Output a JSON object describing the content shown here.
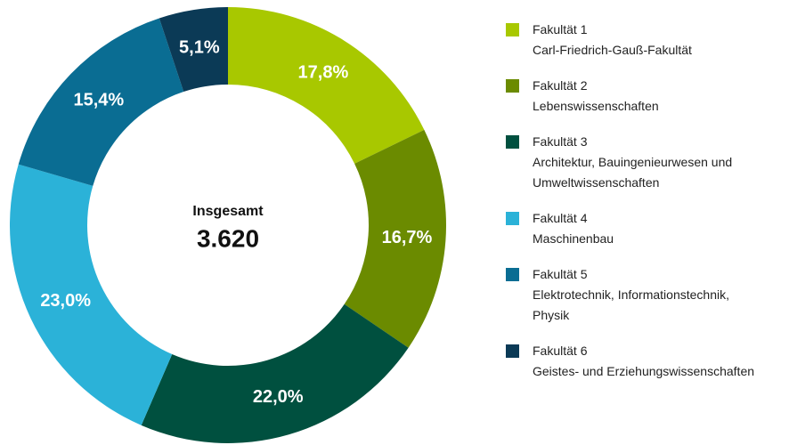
{
  "chart_data": {
    "type": "donut",
    "center_title": "Insgesamt",
    "center_value": "3.620",
    "categories": [
      "Fakultät 1",
      "Fakultät 2",
      "Fakultät 3",
      "Fakultät 4",
      "Fakultät 5",
      "Fakultät 6"
    ],
    "descriptions": [
      [
        "Carl-Friedrich-Gauß-Fakultät"
      ],
      [
        "Lebenswissenschaften"
      ],
      [
        "Architektur, Bauingenieurwesen und",
        "Umweltwissenschaften"
      ],
      [
        "Maschinenbau"
      ],
      [
        "Elektrotechnik, Informationstechnik,",
        "Physik"
      ],
      [
        "Geistes- und Erziehungswissenschaften"
      ]
    ],
    "values": [
      17.8,
      16.7,
      22.0,
      23.0,
      15.4,
      5.1
    ],
    "value_labels": [
      "17,8%",
      "16,7%",
      "22,0%",
      "23,0%",
      "15,4%",
      "5,1%"
    ],
    "colors": [
      "#a8c800",
      "#6b8b00",
      "#00503f",
      "#2bb2d8",
      "#0a6d93",
      "#0b3a56"
    ]
  }
}
